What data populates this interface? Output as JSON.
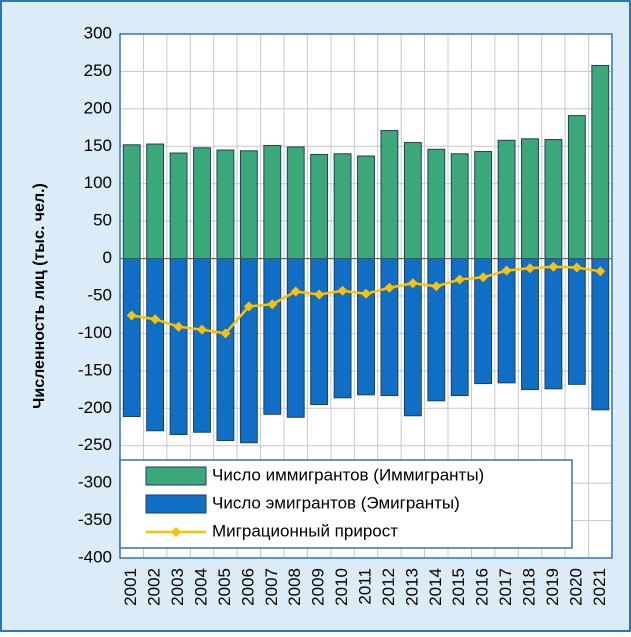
{
  "chart_data": {
    "type": "bar_line",
    "y_label": "Численность лиц (тыс. чел.)",
    "categories": [
      "2001",
      "2002",
      "2003",
      "2004",
      "2005",
      "2006",
      "2007",
      "2008",
      "2009",
      "2010",
      "2011",
      "2012",
      "2013",
      "2014",
      "2015",
      "2016",
      "2017",
      "2018",
      "2019",
      "2020",
      "2021"
    ],
    "series": [
      {
        "name": "Число иммигрантов (Иммигранты)",
        "type": "bar",
        "color": "#3aa878",
        "values": [
          152,
          153,
          141,
          148,
          145,
          144,
          151,
          149,
          139,
          140,
          137,
          171,
          155,
          146,
          140,
          143,
          158,
          160,
          159,
          191,
          258
        ]
      },
      {
        "name": "Число эмигрантов (Эмигранты)",
        "type": "bar",
        "color": "#0f6fc6",
        "values": [
          -211,
          -230,
          -235,
          -232,
          -243,
          -246,
          -208,
          -212,
          -195,
          -186,
          -182,
          -183,
          -210,
          -190,
          -183,
          -167,
          -166,
          -175,
          -174,
          -168,
          -202
        ]
      },
      {
        "name": "Миграционный прирост",
        "type": "line",
        "color": "#ffc000",
        "values": [
          -76,
          -81,
          -91,
          -95,
          -100,
          -64,
          -61,
          -44,
          -48,
          -43,
          -47,
          -39,
          -33,
          -37,
          -28,
          -25,
          -16,
          -13,
          -11,
          -12,
          -17
        ]
      }
    ],
    "ylim": [
      -400,
      300
    ],
    "yticks": [
      -400,
      -350,
      -300,
      -250,
      -200,
      -150,
      -100,
      -50,
      0,
      50,
      100,
      150,
      200,
      250,
      300
    ],
    "grid": true,
    "legend": "lower center"
  }
}
